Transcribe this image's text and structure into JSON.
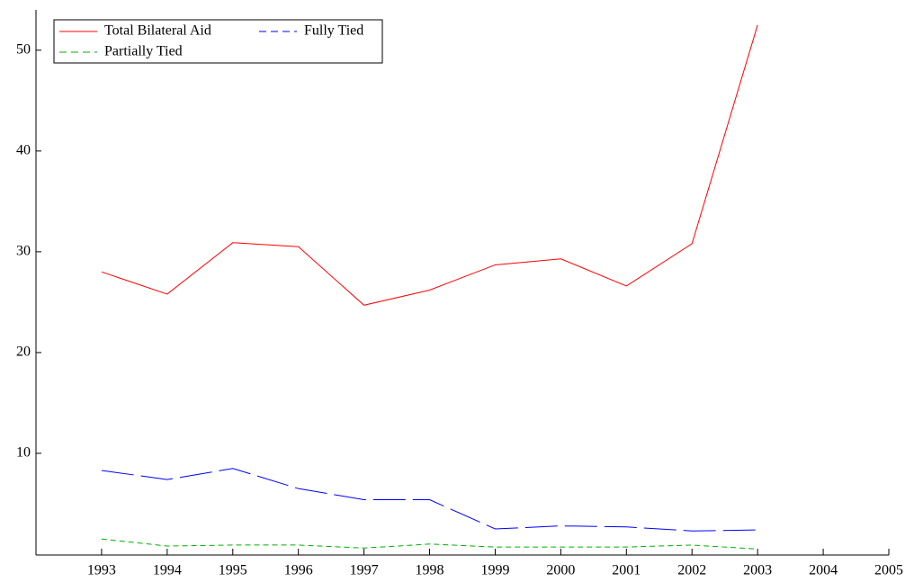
{
  "chart_data": {
    "type": "line",
    "x": [
      1993,
      1994,
      1995,
      1996,
      1997,
      1998,
      1999,
      2000,
      2001,
      2002,
      2003
    ],
    "series": [
      {
        "name": "Total Bilateral Aid",
        "color": "#ff0000",
        "dash": "none",
        "values": [
          28.0,
          25.8,
          30.9,
          30.5,
          24.7,
          26.2,
          28.7,
          29.3,
          26.6,
          30.8,
          52.5
        ]
      },
      {
        "name": "Fully Tied",
        "color": "#0000ff",
        "dash": "36,8",
        "values": [
          8.3,
          7.4,
          8.5,
          6.5,
          5.4,
          5.4,
          2.5,
          2.8,
          2.7,
          2.3,
          2.4
        ]
      },
      {
        "name": "Partially Tied",
        "color": "#00b000",
        "dash": "6,4",
        "values": [
          1.5,
          0.8,
          0.9,
          0.9,
          0.6,
          1.0,
          0.7,
          0.7,
          0.7,
          0.9,
          0.5
        ]
      }
    ],
    "xlim": [
      1992,
      2005
    ],
    "xticks": [
      1993,
      1994,
      1995,
      1996,
      1997,
      1998,
      1999,
      2000,
      2001,
      2002,
      2003,
      2004,
      2005
    ],
    "ylim": [
      0,
      54
    ],
    "yticks": [
      10,
      20,
      30,
      40,
      50
    ],
    "legend": "upper-left"
  }
}
